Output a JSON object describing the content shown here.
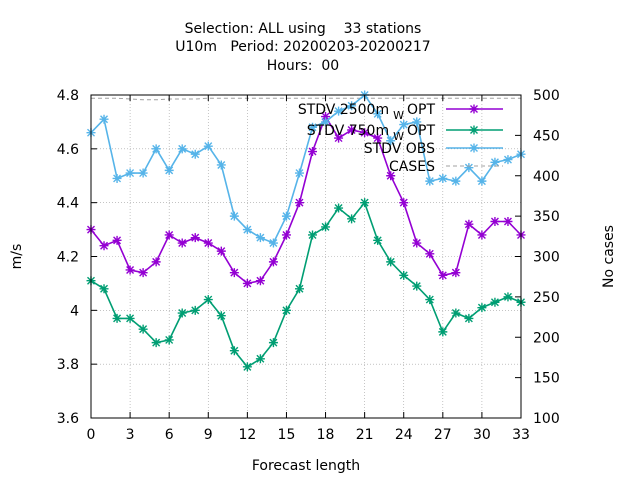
{
  "chart_data": {
    "type": "line",
    "title_lines": [
      "Selection: ALL using    33 stations",
      "U10m   Period: 20200203-20200217",
      "Hours:  00"
    ],
    "xlabel": "Forecast length",
    "ylabel": "m/s",
    "y2label": "No cases",
    "xlim": [
      0,
      33
    ],
    "ylim": [
      3.6,
      4.8
    ],
    "y2lim": [
      100,
      500
    ],
    "x_ticks": [
      0,
      3,
      6,
      9,
      12,
      15,
      18,
      21,
      24,
      27,
      30,
      33
    ],
    "y_ticks": [
      "3.6",
      "3.8",
      "4",
      "4.2",
      "4.4",
      "4.6",
      "4.8"
    ],
    "y2_ticks": [
      "100",
      "150",
      "200",
      "250",
      "300",
      "350",
      "400",
      "450",
      "500"
    ],
    "legend_position": "top-right",
    "x": [
      0,
      1,
      2,
      3,
      4,
      5,
      6,
      7,
      8,
      9,
      10,
      11,
      12,
      13,
      14,
      15,
      16,
      17,
      18,
      19,
      20,
      21,
      22,
      23,
      24,
      25,
      26,
      27,
      28,
      29,
      30,
      31,
      32,
      33
    ],
    "series": [
      {
        "name": "STDV 2500m",
        "name_sub": "W",
        "name_suffix": "OPT",
        "color": "#9400d3",
        "axis": "y",
        "values": [
          4.3,
          4.24,
          4.26,
          4.15,
          4.14,
          4.18,
          4.28,
          4.25,
          4.27,
          4.25,
          4.22,
          4.14,
          4.1,
          4.11,
          4.18,
          4.28,
          4.4,
          4.59,
          4.72,
          4.64,
          4.67,
          4.66,
          4.64,
          4.5,
          4.4,
          4.25,
          4.21,
          4.13,
          4.14,
          4.32,
          4.28,
          4.33,
          4.33,
          4.28
        ]
      },
      {
        "name": "STDV 750m",
        "name_sub": "W",
        "name_suffix": "OPT",
        "color": "#009e73",
        "axis": "y",
        "values": [
          4.11,
          4.08,
          3.97,
          3.97,
          3.93,
          3.88,
          3.89,
          3.99,
          4.0,
          4.04,
          3.98,
          3.85,
          3.79,
          3.82,
          3.88,
          4.0,
          4.08,
          4.28,
          4.31,
          4.38,
          4.34,
          4.4,
          4.26,
          4.18,
          4.13,
          4.09,
          4.04,
          3.92,
          3.99,
          3.97,
          4.01,
          4.03,
          4.05,
          4.03
        ]
      },
      {
        "name": "STDV OBS",
        "color": "#56b4e9",
        "axis": "y",
        "values": [
          4.66,
          4.71,
          4.49,
          4.51,
          4.51,
          4.6,
          4.52,
          4.6,
          4.58,
          4.61,
          4.54,
          4.35,
          4.3,
          4.27,
          4.25,
          4.35,
          4.51,
          4.68,
          4.7,
          4.74,
          4.76,
          4.8,
          4.73,
          4.63,
          4.69,
          4.7,
          4.48,
          4.49,
          4.48,
          4.53,
          4.48,
          4.55,
          4.56,
          4.58
        ]
      },
      {
        "name": "CASES",
        "color": "#a0a0a0",
        "axis": "y2",
        "dashed": true,
        "values": [
          496,
          496,
          496,
          495,
          494,
          494,
          495,
          495,
          495,
          496,
          496,
          496,
          496,
          496,
          496,
          496,
          496,
          496,
          496,
          496,
          496,
          496,
          496,
          496,
          496,
          496,
          496,
          496,
          496,
          496,
          496,
          496,
          496,
          496
        ]
      }
    ]
  }
}
